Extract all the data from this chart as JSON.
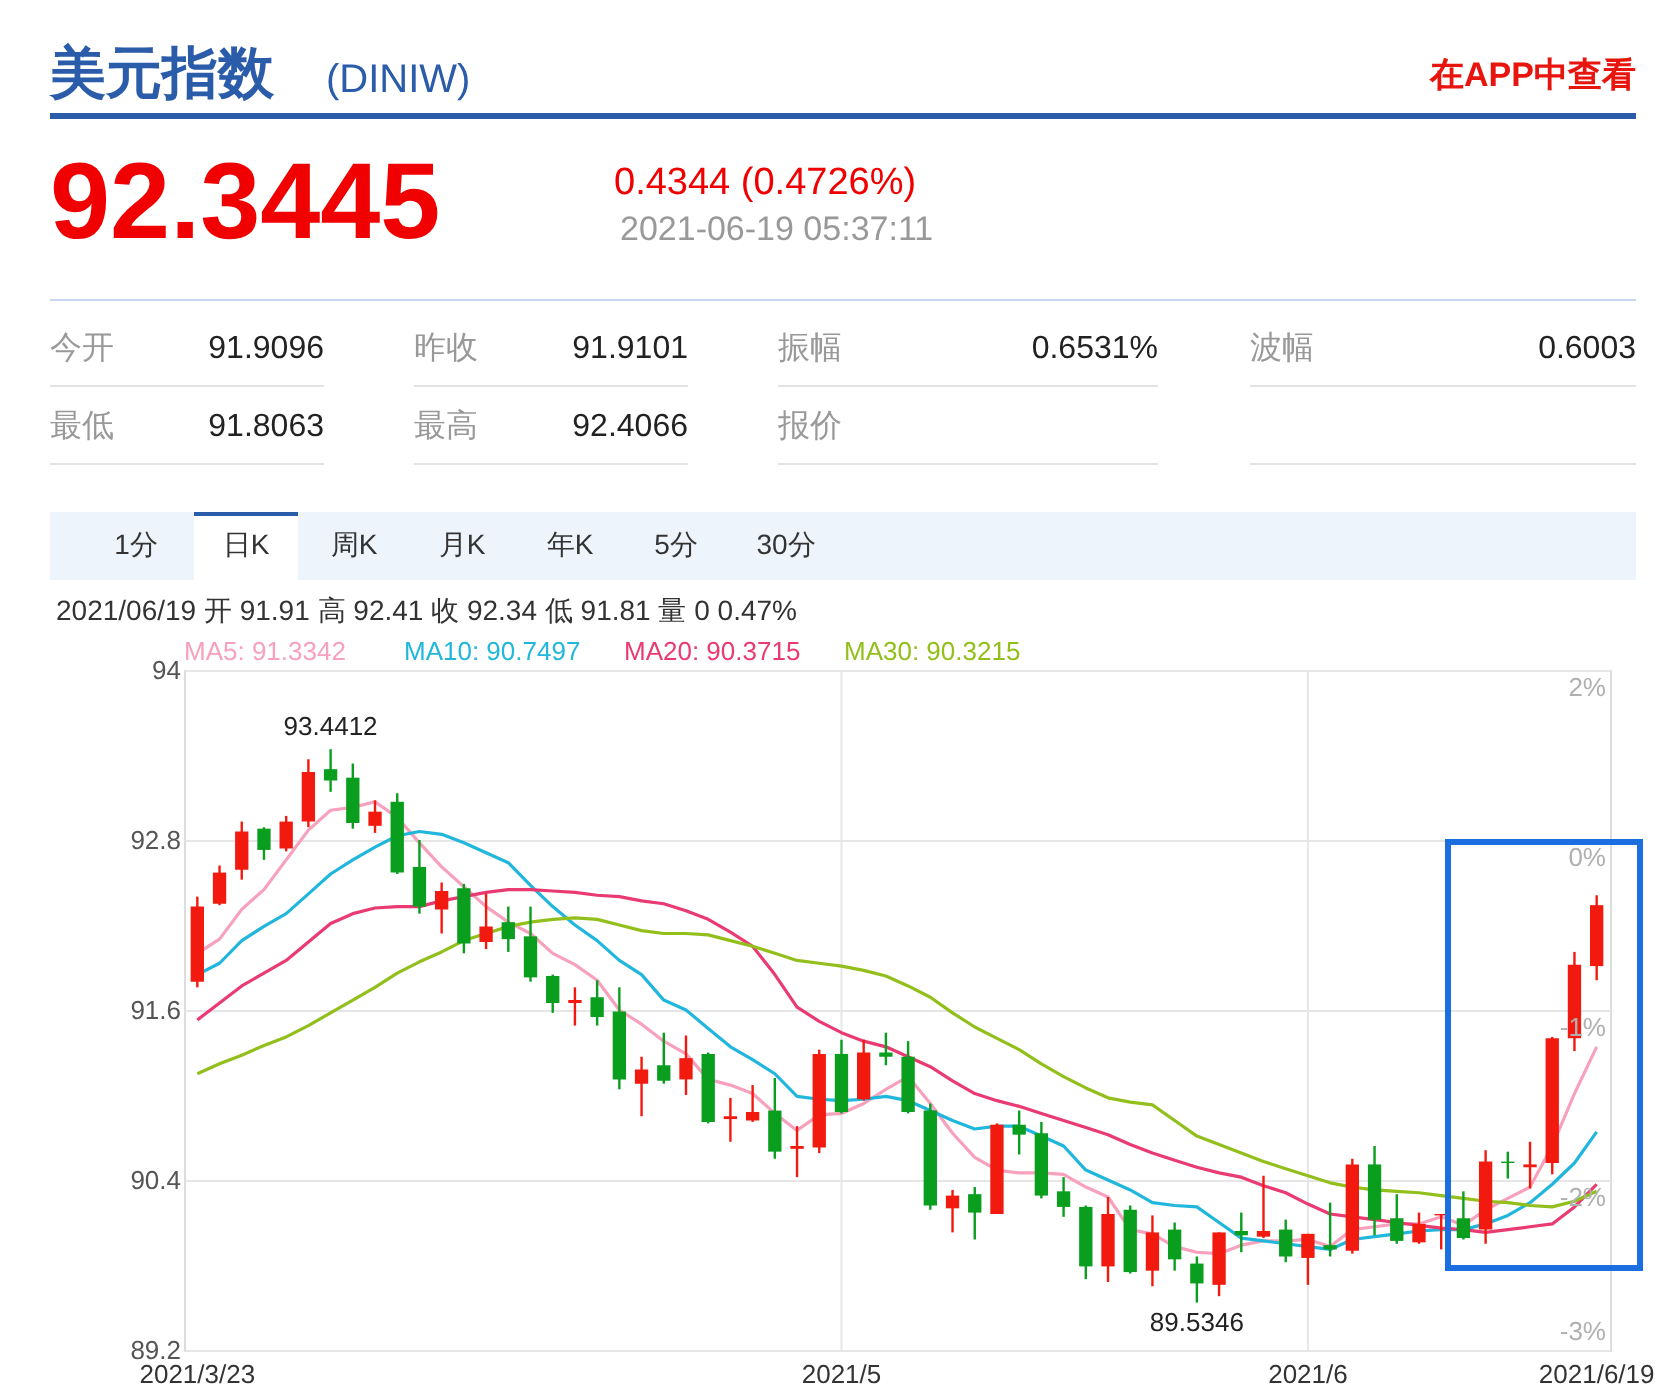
{
  "chart_data": {
    "type": "candlestick",
    "title": "美元指数",
    "subtitle": "(DINIW)",
    "categories": [
      "2021/3/23",
      null,
      null,
      null,
      null,
      null,
      null,
      null,
      null,
      null,
      null,
      null,
      null,
      null,
      null,
      null,
      null,
      null,
      null,
      null,
      null,
      null,
      null,
      null,
      null,
      null,
      null,
      null,
      null,
      "2021/5",
      null,
      null,
      null,
      null,
      null,
      null,
      null,
      null,
      null,
      null,
      null,
      null,
      null,
      null,
      null,
      null,
      null,
      null,
      null,
      null,
      "2021/6",
      null,
      null,
      null,
      null,
      null,
      null,
      null,
      null,
      null,
      null,
      null,
      null,
      "2021/6/19"
    ],
    "ohlc": [
      [
        91.8,
        92.4,
        91.76,
        92.33
      ],
      [
        92.35,
        92.62,
        92.34,
        92.57
      ],
      [
        92.59,
        92.93,
        92.52,
        92.86
      ],
      [
        92.88,
        92.89,
        92.66,
        92.73
      ],
      [
        92.74,
        92.97,
        92.72,
        92.93
      ],
      [
        92.93,
        93.37,
        92.89,
        93.28
      ],
      [
        93.3,
        93.4412,
        93.14,
        93.22
      ],
      [
        93.24,
        93.34,
        92.88,
        92.92
      ],
      [
        92.9,
        93.08,
        92.85,
        93.0
      ],
      [
        93.07,
        93.13,
        92.56,
        92.57
      ],
      [
        92.61,
        92.8,
        92.28,
        92.33
      ],
      [
        92.31,
        92.5,
        92.14,
        92.44
      ],
      [
        92.46,
        92.49,
        92.0,
        92.07
      ],
      [
        92.08,
        92.42,
        92.03,
        92.19
      ],
      [
        92.22,
        92.33,
        92.01,
        92.1
      ],
      [
        92.12,
        92.33,
        91.8,
        91.83
      ],
      [
        91.84,
        91.85,
        91.58,
        91.65
      ],
      [
        91.65,
        91.76,
        91.49,
        91.67
      ],
      [
        91.69,
        91.81,
        91.49,
        91.55
      ],
      [
        91.59,
        91.76,
        91.04,
        91.11
      ],
      [
        91.08,
        91.27,
        90.85,
        91.18
      ],
      [
        91.21,
        91.44,
        91.08,
        91.1
      ],
      [
        91.11,
        91.42,
        91.0,
        91.26
      ],
      [
        91.29,
        91.3,
        90.8,
        90.81
      ],
      [
        90.83,
        90.98,
        90.67,
        90.85
      ],
      [
        90.82,
        91.07,
        90.81,
        90.88
      ],
      [
        90.89,
        91.12,
        90.55,
        90.6
      ],
      [
        90.62,
        90.78,
        90.42,
        90.64
      ],
      [
        90.63,
        91.32,
        90.59,
        91.29
      ],
      [
        91.29,
        91.39,
        90.87,
        90.88
      ],
      [
        90.97,
        91.39,
        90.96,
        91.3
      ],
      [
        91.3,
        91.44,
        91.21,
        91.27
      ],
      [
        91.27,
        91.38,
        90.87,
        90.88
      ],
      [
        90.89,
        90.94,
        90.19,
        90.22
      ],
      [
        90.2,
        90.33,
        90.03,
        90.29
      ],
      [
        90.3,
        90.35,
        89.98,
        90.17
      ],
      [
        90.16,
        90.8,
        90.16,
        90.79
      ],
      [
        90.79,
        90.89,
        90.58,
        90.72
      ],
      [
        90.73,
        90.81,
        90.27,
        90.29
      ],
      [
        90.32,
        90.42,
        90.14,
        90.21
      ],
      [
        90.21,
        90.22,
        89.7,
        89.79
      ],
      [
        89.79,
        90.28,
        89.68,
        90.16
      ],
      [
        90.19,
        90.22,
        89.74,
        89.75
      ],
      [
        89.76,
        90.15,
        89.65,
        90.03
      ],
      [
        90.05,
        90.1,
        89.76,
        89.84
      ],
      [
        89.81,
        89.86,
        89.5346,
        89.67
      ],
      [
        89.66,
        90.03,
        89.58,
        90.03
      ],
      [
        90.04,
        90.17,
        89.89,
        90.01
      ],
      [
        90.0,
        90.43,
        89.99,
        90.04
      ],
      [
        90.05,
        90.12,
        89.82,
        89.86
      ],
      [
        89.85,
        90.02,
        89.66,
        90.02
      ],
      [
        89.94,
        90.24,
        89.86,
        89.91
      ],
      [
        89.9,
        90.55,
        89.88,
        90.51
      ],
      [
        90.51,
        90.64,
        90.01,
        90.12
      ],
      [
        90.13,
        90.3,
        89.95,
        89.97
      ],
      [
        89.96,
        90.17,
        89.95,
        90.09
      ],
      [
        90.15,
        90.16,
        89.91,
        90.16
      ],
      [
        90.13,
        90.32,
        89.98,
        89.99
      ],
      [
        90.05,
        90.61,
        89.95,
        90.53
      ],
      [
        90.53,
        90.6,
        90.41,
        90.52
      ],
      [
        90.49,
        90.67,
        90.34,
        90.51
      ],
      [
        90.52,
        91.41,
        90.44,
        91.4
      ],
      [
        91.4,
        92.01,
        91.31,
        91.92
      ],
      [
        91.91,
        92.41,
        91.81,
        92.34
      ]
    ],
    "colors": [
      "#f21a0f",
      "#f21a0f",
      "#f21a0f",
      "#0a9e1e",
      "#f21a0f",
      "#f21a0f",
      "#0a9e1e",
      "#0a9e1e",
      "#f21a0f",
      "#0a9e1e",
      "#0a9e1e",
      "#f21a0f",
      "#0a9e1e",
      "#f21a0f",
      "#0a9e1e",
      "#0a9e1e",
      "#0a9e1e",
      "#f21a0f",
      "#0a9e1e",
      "#0a9e1e",
      "#f21a0f",
      "#0a9e1e",
      "#f21a0f",
      "#0a9e1e",
      "#f21a0f",
      "#f21a0f",
      "#0a9e1e",
      "#f21a0f",
      "#f21a0f",
      "#0a9e1e",
      "#f21a0f",
      "#0a9e1e",
      "#0a9e1e",
      "#0a9e1e",
      "#f21a0f",
      "#0a9e1e",
      "#f21a0f",
      "#0a9e1e",
      "#0a9e1e",
      "#0a9e1e",
      "#0a9e1e",
      "#f21a0f",
      "#0a9e1e",
      "#f21a0f",
      "#0a9e1e",
      "#0a9e1e",
      "#f21a0f",
      "#0a9e1e",
      "#f21a0f",
      "#0a9e1e",
      "#f21a0f",
      "#0a9e1e",
      "#f21a0f",
      "#0a9e1e",
      "#0a9e1e",
      "#f21a0f",
      "#f21a0f",
      "#0a9e1e",
      "#f21a0f",
      "#0a9e1e",
      "#f21a0f",
      "#f21a0f",
      "#f21a0f",
      "#f21a0f"
    ],
    "series": [
      {
        "name": "MA5: 91.3342",
        "type": "line",
        "color": "#f7a1bc",
        "values": [
          92.0,
          92.1,
          92.31,
          92.45,
          92.66,
          92.87,
          93.01,
          93.03,
          93.07,
          92.96,
          92.78,
          92.61,
          92.47,
          92.33,
          92.22,
          92.14,
          92.0,
          91.92,
          91.81,
          91.6,
          91.5,
          91.38,
          91.29,
          91.11,
          91.07,
          91.01,
          90.87,
          90.75,
          90.86,
          90.87,
          90.94,
          91.04,
          91.13,
          90.94,
          90.73,
          90.56,
          90.47,
          90.45,
          90.45,
          90.44,
          90.35,
          90.28,
          90.05,
          90.02,
          89.93,
          89.89,
          89.88,
          89.94,
          89.97,
          89.97,
          89.98,
          89.93,
          90.05,
          90.07,
          90.09,
          90.09,
          90.14,
          90.08,
          90.19,
          90.27,
          90.35,
          90.64,
          91.01,
          91.34
        ]
      },
      {
        "name": "MA10: 90.7497",
        "type": "line",
        "color": "#21b6dc",
        "values": [
          91.85,
          91.93,
          92.09,
          92.19,
          92.28,
          92.42,
          92.56,
          92.66,
          92.75,
          92.83,
          92.86,
          92.84,
          92.78,
          92.71,
          92.64,
          92.48,
          92.33,
          92.2,
          92.09,
          91.95,
          91.85,
          91.67,
          91.6,
          91.47,
          91.34,
          91.25,
          91.15,
          90.99,
          90.97,
          90.96,
          90.97,
          90.99,
          90.96,
          90.89,
          90.82,
          90.76,
          90.78,
          90.78,
          90.71,
          90.64,
          90.47,
          90.4,
          90.33,
          90.24,
          90.22,
          90.21,
          90.1,
          89.99,
          89.97,
          89.95,
          89.93,
          89.91,
          89.98,
          90.0,
          90.02,
          90.04,
          90.05,
          90.05,
          90.09,
          90.15,
          90.24,
          90.37,
          90.52,
          90.74
        ]
      },
      {
        "name": "MA20: 90.3715",
        "type": "line",
        "color": "#ea3a72",
        "values": [
          91.53,
          91.65,
          91.77,
          91.86,
          91.95,
          92.08,
          92.21,
          92.28,
          92.32,
          92.33,
          92.33,
          92.37,
          92.4,
          92.43,
          92.45,
          92.45,
          92.44,
          92.43,
          92.41,
          92.4,
          92.37,
          92.35,
          92.3,
          92.24,
          92.15,
          92.05,
          91.85,
          91.62,
          91.52,
          91.44,
          91.38,
          91.34,
          91.27,
          91.2,
          91.1,
          91.01,
          90.96,
          90.92,
          90.87,
          90.82,
          90.77,
          90.72,
          90.65,
          90.59,
          90.54,
          90.49,
          90.45,
          90.42,
          90.36,
          90.31,
          90.23,
          90.16,
          90.14,
          90.12,
          90.1,
          90.08,
          90.06,
          90.05,
          90.03,
          90.05,
          90.07,
          90.09,
          90.21,
          90.37
        ]
      },
      {
        "name": "MA30: 90.3215",
        "type": "line",
        "color": "#92bf1b",
        "values": [
          91.15,
          91.22,
          91.28,
          91.35,
          91.41,
          91.49,
          91.58,
          91.67,
          91.76,
          91.86,
          91.94,
          92.01,
          92.09,
          92.14,
          92.19,
          92.22,
          92.24,
          92.25,
          92.24,
          92.2,
          92.16,
          92.14,
          92.14,
          92.13,
          92.09,
          92.05,
          92.0,
          91.95,
          91.93,
          91.91,
          91.88,
          91.84,
          91.77,
          91.69,
          91.58,
          91.48,
          91.4,
          91.32,
          91.22,
          91.13,
          91.05,
          90.98,
          90.95,
          90.93,
          90.82,
          90.71,
          90.65,
          90.59,
          90.53,
          90.48,
          90.43,
          90.38,
          90.35,
          90.33,
          90.32,
          90.31,
          90.29,
          90.27,
          90.25,
          90.24,
          90.22,
          90.21,
          90.25,
          90.32
        ]
      }
    ],
    "ylim": [
      89.2,
      94
    ],
    "yticks": [
      94,
      92.8,
      91.6,
      90.4,
      89.2
    ],
    "grid": true,
    "legend": "top",
    "annotations": [
      "在APP中查看",
      "92.3445",
      "0.4344 (0.4726%)",
      "2021-06-19 05:37:11",
      "今开",
      "91.9096",
      "昨收",
      "91.9101",
      "振幅",
      "0.6531%",
      "波幅",
      "0.6003",
      "最低",
      "91.8063",
      "最高",
      "92.4066",
      "报价",
      "1分",
      "日K",
      "周K",
      "月K",
      "年K",
      "5分",
      "30分",
      "2021/06/19 开 91.91 高 92.41 收 92.34 低 91.81 量 0 0.47%",
      "2%",
      "0%",
      "-1%",
      "-2%",
      "-3%",
      {
        "text": "93.4412",
        "y": 93.4412
      },
      {
        "text": "89.5346",
        "y": 89.5346
      }
    ]
  }
}
